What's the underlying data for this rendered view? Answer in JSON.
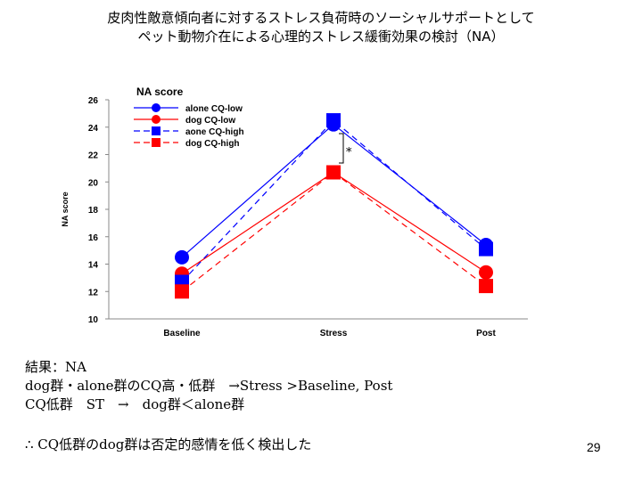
{
  "slide": {
    "title_lines": [
      "皮肉性敵意傾向者に対するストレス負荷時のソーシャルサポートとして",
      "ペット動物介在による心理的ストレス緩衝効果の検討（NA）"
    ],
    "result_lines": [
      "結果：NA",
      "dog群・alone群のCQ高・低群　→Stress >Baseline, Post",
      "CQ低群　ST　→　dog群＜alone群"
    ],
    "conclusion": "∴ CQ低群のdog群は否定的感情を低く検出した",
    "page_number": "29"
  },
  "chart_data": {
    "type": "line",
    "title": "NA score",
    "xlabel": "",
    "ylabel": "NA score",
    "categories": [
      "Baseline",
      "Stress",
      "Post"
    ],
    "ylim": [
      10,
      26
    ],
    "yticks": [
      10,
      12,
      14,
      16,
      18,
      20,
      22,
      24,
      26
    ],
    "grid": false,
    "legend_position": "top-left",
    "series": [
      {
        "name": "alone CQ-low",
        "values": [
          14.5,
          24.2,
          15.4
        ],
        "color": "#0000ff",
        "marker": "circle",
        "dashed": false
      },
      {
        "name": "dog CQ-low",
        "values": [
          13.3,
          20.7,
          13.4
        ],
        "color": "#ff0000",
        "marker": "circle",
        "dashed": false
      },
      {
        "name": "aone CQ-high",
        "values": [
          12.7,
          24.5,
          15.1
        ],
        "color": "#0000ff",
        "marker": "square",
        "dashed": true
      },
      {
        "name": "dog CQ-high",
        "values": [
          12.0,
          20.7,
          12.4
        ],
        "color": "#ff0000",
        "marker": "square",
        "dashed": true
      }
    ],
    "annotations": [
      {
        "text": "*",
        "category": "Stress"
      }
    ]
  }
}
